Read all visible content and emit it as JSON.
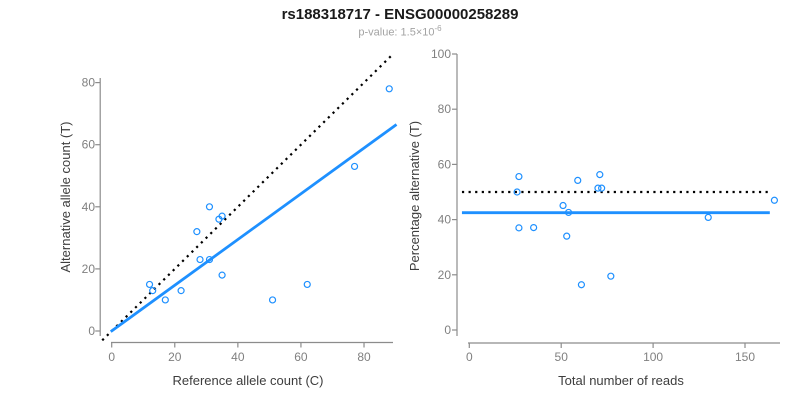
{
  "header": {
    "title": "rs188318717 - ENSG00000258289",
    "pvalue_text": "p-value: 1.5×10",
    "pvalue_exponent": "-6"
  },
  "colors": {
    "accent_blue": "#1E90FF",
    "dotted_line_black": "#000000",
    "point_blue": "#1E90FF",
    "axis_gray": "#8c8c8c",
    "tick_label_gray": "#808080",
    "axis_title_gray": "#3d3d3d",
    "title_color": "#1a1a1a",
    "subtitle_gray": "#a3a3a3"
  },
  "chart_data": [
    {
      "type": "scatter",
      "panel": "left",
      "xlabel": "Reference allele count (C)",
      "ylabel": "Alternative allele count (T)",
      "xticks": [
        0,
        20,
        40,
        60,
        80
      ],
      "yticks": [
        0,
        20,
        40,
        60,
        80
      ],
      "xlim": [
        -3.5,
        91.5
      ],
      "ylim": [
        -3.5,
        88.5
      ],
      "grid": false,
      "points": [
        [
          12,
          15
        ],
        [
          13,
          13
        ],
        [
          17,
          10
        ],
        [
          22,
          13
        ],
        [
          27,
          32
        ],
        [
          28,
          23
        ],
        [
          31,
          23
        ],
        [
          31,
          40
        ],
        [
          34,
          36
        ],
        [
          35,
          37
        ],
        [
          35,
          18
        ],
        [
          51,
          10
        ],
        [
          62,
          15
        ],
        [
          77,
          53
        ],
        [
          88,
          78
        ]
      ],
      "lines": [
        {
          "name": "identity-line",
          "style": "dotted",
          "color_key": "dotted_line_black",
          "x1": -3,
          "y1": -3,
          "x2": 88.5,
          "y2": 88.5
        },
        {
          "name": "regression-line",
          "style": "solid",
          "color_key": "accent_blue",
          "x1": -0.3,
          "y1": -0.2,
          "x2": 90.3,
          "y2": 66.5
        }
      ]
    },
    {
      "type": "scatter",
      "panel": "right",
      "xlabel": "Total number of reads",
      "ylabel": "Percentage alternative (T)",
      "xticks": [
        0,
        50,
        100,
        150
      ],
      "yticks": [
        0,
        20,
        40,
        60,
        80,
        100
      ],
      "xlim": [
        -4,
        169
      ],
      "ylim": [
        -4,
        104
      ],
      "grid": false,
      "points": [
        [
          27,
          55.6
        ],
        [
          26,
          50.0
        ],
        [
          27,
          37.0
        ],
        [
          35,
          37.1
        ],
        [
          59,
          54.2
        ],
        [
          51,
          45.1
        ],
        [
          54,
          42.6
        ],
        [
          71,
          56.3
        ],
        [
          70,
          51.4
        ],
        [
          72,
          51.4
        ],
        [
          53,
          34.0
        ],
        [
          61,
          16.4
        ],
        [
          77,
          19.5
        ],
        [
          130,
          40.8
        ],
        [
          166,
          47.0
        ]
      ],
      "lines": [
        {
          "name": "null-percentage-line",
          "style": "dotted",
          "color_key": "dotted_line_black",
          "x1": -4,
          "y1": 50,
          "x2": 163.5,
          "y2": 50
        },
        {
          "name": "mean-percentage-line",
          "style": "solid",
          "color_key": "accent_blue",
          "x1": -4,
          "y1": 42.5,
          "x2": 163.5,
          "y2": 42.5
        }
      ]
    }
  ]
}
